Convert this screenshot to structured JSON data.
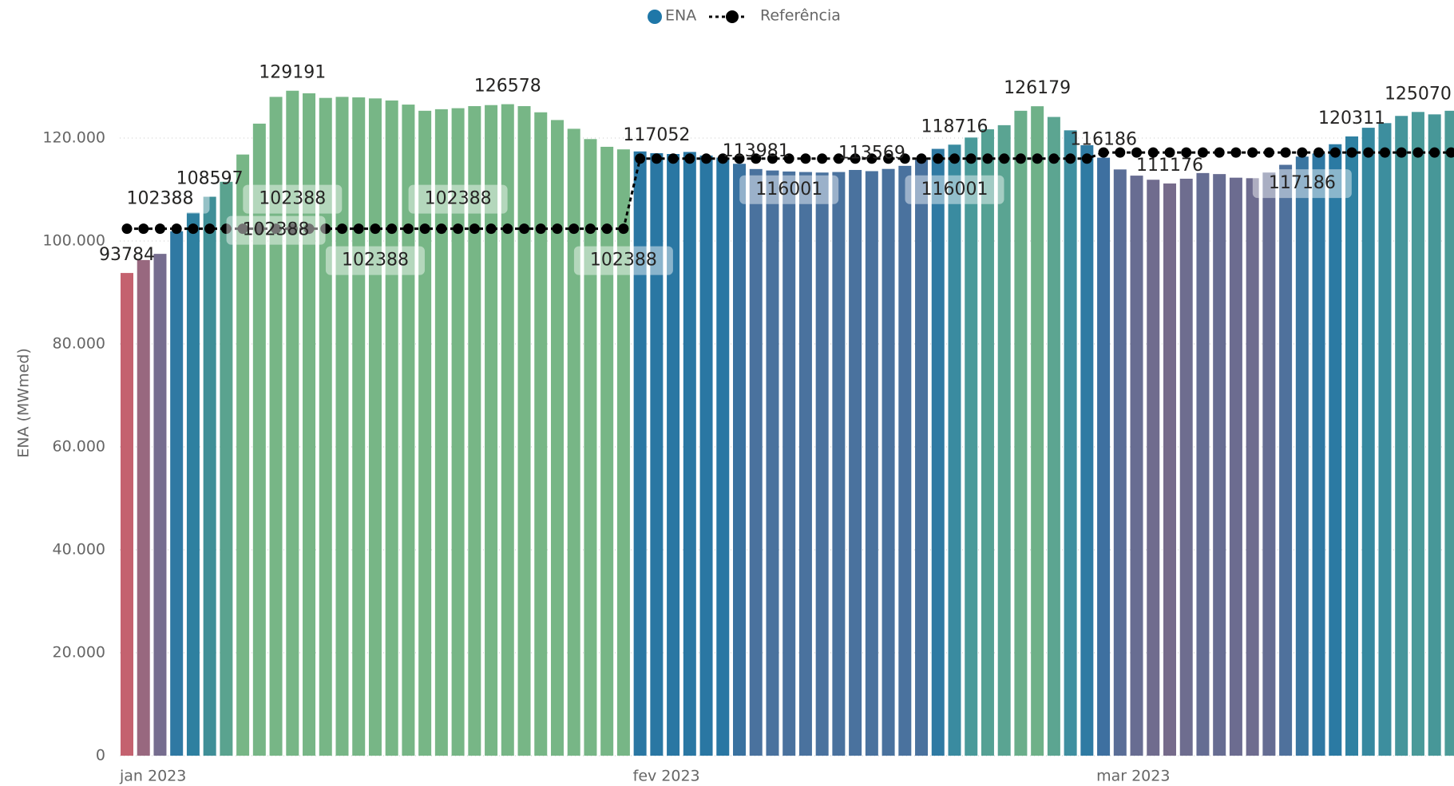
{
  "chart_data": {
    "type": "bar",
    "y_label": "ENA (MWmed)",
    "categories": [
      "jan 2023",
      null,
      null,
      null,
      null,
      null,
      null,
      null,
      null,
      null,
      null,
      null,
      null,
      null,
      null,
      null,
      null,
      null,
      null,
      null,
      null,
      null,
      null,
      null,
      null,
      null,
      null,
      null,
      null,
      null,
      null,
      "fev 2023",
      null,
      null,
      null,
      null,
      null,
      null,
      null,
      null,
      null,
      null,
      null,
      null,
      null,
      null,
      null,
      null,
      null,
      null,
      null,
      null,
      null,
      null,
      null,
      null,
      null,
      null,
      null,
      "mar 2023",
      null,
      null,
      null,
      null,
      null,
      null,
      null,
      null,
      null,
      null,
      null,
      null,
      null,
      null,
      null,
      null,
      null,
      null,
      null,
      null,
      null
    ],
    "series": [
      {
        "name": "ENA",
        "type": "bar",
        "color": "#1f77a8",
        "values": [
          93784,
          96300,
          97500,
          101900,
          105500,
          108597,
          111500,
          116800,
          122800,
          128000,
          129191,
          128700,
          127800,
          128000,
          127900,
          127700,
          127300,
          126500,
          125300,
          125600,
          125800,
          126200,
          126400,
          126578,
          126200,
          125000,
          123500,
          121800,
          119800,
          118300,
          117800,
          117400,
          117052,
          116900,
          117300,
          116600,
          116200,
          115000,
          113981,
          113700,
          113500,
          113400,
          113300,
          113400,
          113800,
          113569,
          114000,
          114600,
          115800,
          117900,
          118716,
          120100,
          121700,
          122500,
          125300,
          126179,
          124100,
          121500,
          118600,
          116186,
          113900,
          112700,
          111900,
          111176,
          112100,
          113200,
          113000,
          112300,
          112200,
          113300,
          114800,
          116400,
          117000,
          118800,
          120311,
          122000,
          122900,
          124300,
          125070,
          124600,
          125300
        ],
        "colors": [
          "#c4626f",
          "#98687f",
          "#766d8f",
          "#2f79a3",
          "#2e80a0",
          "#3f8f97",
          "#5aa38f",
          "#77b686",
          "#77b686",
          "#77b686",
          "#77b686",
          "#77b686",
          "#77b686",
          "#77b686",
          "#77b686",
          "#77b686",
          "#77b686",
          "#77b686",
          "#77b686",
          "#77b686",
          "#77b686",
          "#77b686",
          "#77b686",
          "#77b686",
          "#77b686",
          "#77b686",
          "#77b686",
          "#77b686",
          "#77b686",
          "#77b686",
          "#77b686",
          "#2a77a3",
          "#2a77a3",
          "#2a77a3",
          "#2a77a3",
          "#2a77a3",
          "#2a77a3",
          "#3a72a0",
          "#4a729e",
          "#4a729e",
          "#4a729e",
          "#4a729e",
          "#4a729e",
          "#4a729e",
          "#4a729e",
          "#4a729e",
          "#4a729e",
          "#4a729e",
          "#4a729e",
          "#2f7aa3",
          "#3a8ba0",
          "#4a9a9a",
          "#55a194",
          "#5aa492",
          "#6aae8b",
          "#6fb188",
          "#5ca591",
          "#3f8fa0",
          "#2f7ba3",
          "#3e70a0",
          "#5a6e97",
          "#686d92",
          "#706c8e",
          "#766b8b",
          "#6e6d8f",
          "#656d93",
          "#676d92",
          "#6c6c90",
          "#6e6c8f",
          "#656d93",
          "#4f719c",
          "#3a76a1",
          "#2f78a3",
          "#2b7aa3",
          "#2f81a2",
          "#3789a0",
          "#3d8e9e",
          "#45959b",
          "#4a9a99",
          "#479798",
          "#4c9b98"
        ]
      },
      {
        "name": "Referência",
        "type": "line",
        "color": "#000000",
        "values": [
          102388,
          102388,
          102388,
          102388,
          102388,
          102388,
          102388,
          102388,
          102388,
          102388,
          102388,
          102388,
          102388,
          102388,
          102388,
          102388,
          102388,
          102388,
          102388,
          102388,
          102388,
          102388,
          102388,
          102388,
          102388,
          102388,
          102388,
          102388,
          102388,
          102388,
          102388,
          116001,
          116001,
          116001,
          116001,
          116001,
          116001,
          116001,
          116001,
          116001,
          116001,
          116001,
          116001,
          116001,
          116001,
          116001,
          116001,
          116001,
          116001,
          116001,
          116001,
          116001,
          116001,
          116001,
          116001,
          116001,
          116001,
          116001,
          116001,
          117186,
          117186,
          117186,
          117186,
          117186,
          117186,
          117186,
          117186,
          117186,
          117186,
          117186,
          117186,
          117186,
          117186,
          117186,
          117186,
          117186,
          117186,
          117186,
          117186,
          117186,
          117186
        ]
      }
    ],
    "ylim": [
      0,
      140000
    ],
    "yticks": [
      0,
      {
        "value": 20000,
        "label": "20.000"
      },
      {
        "value": 40000,
        "label": "40.000"
      },
      {
        "value": 60000,
        "label": "60.000"
      },
      {
        "value": 80000,
        "label": "80.000"
      },
      {
        "value": 100000,
        "label": "100.000"
      },
      {
        "value": 120000,
        "label": "120.000"
      }
    ],
    "grid": true,
    "legend": "top"
  }
}
